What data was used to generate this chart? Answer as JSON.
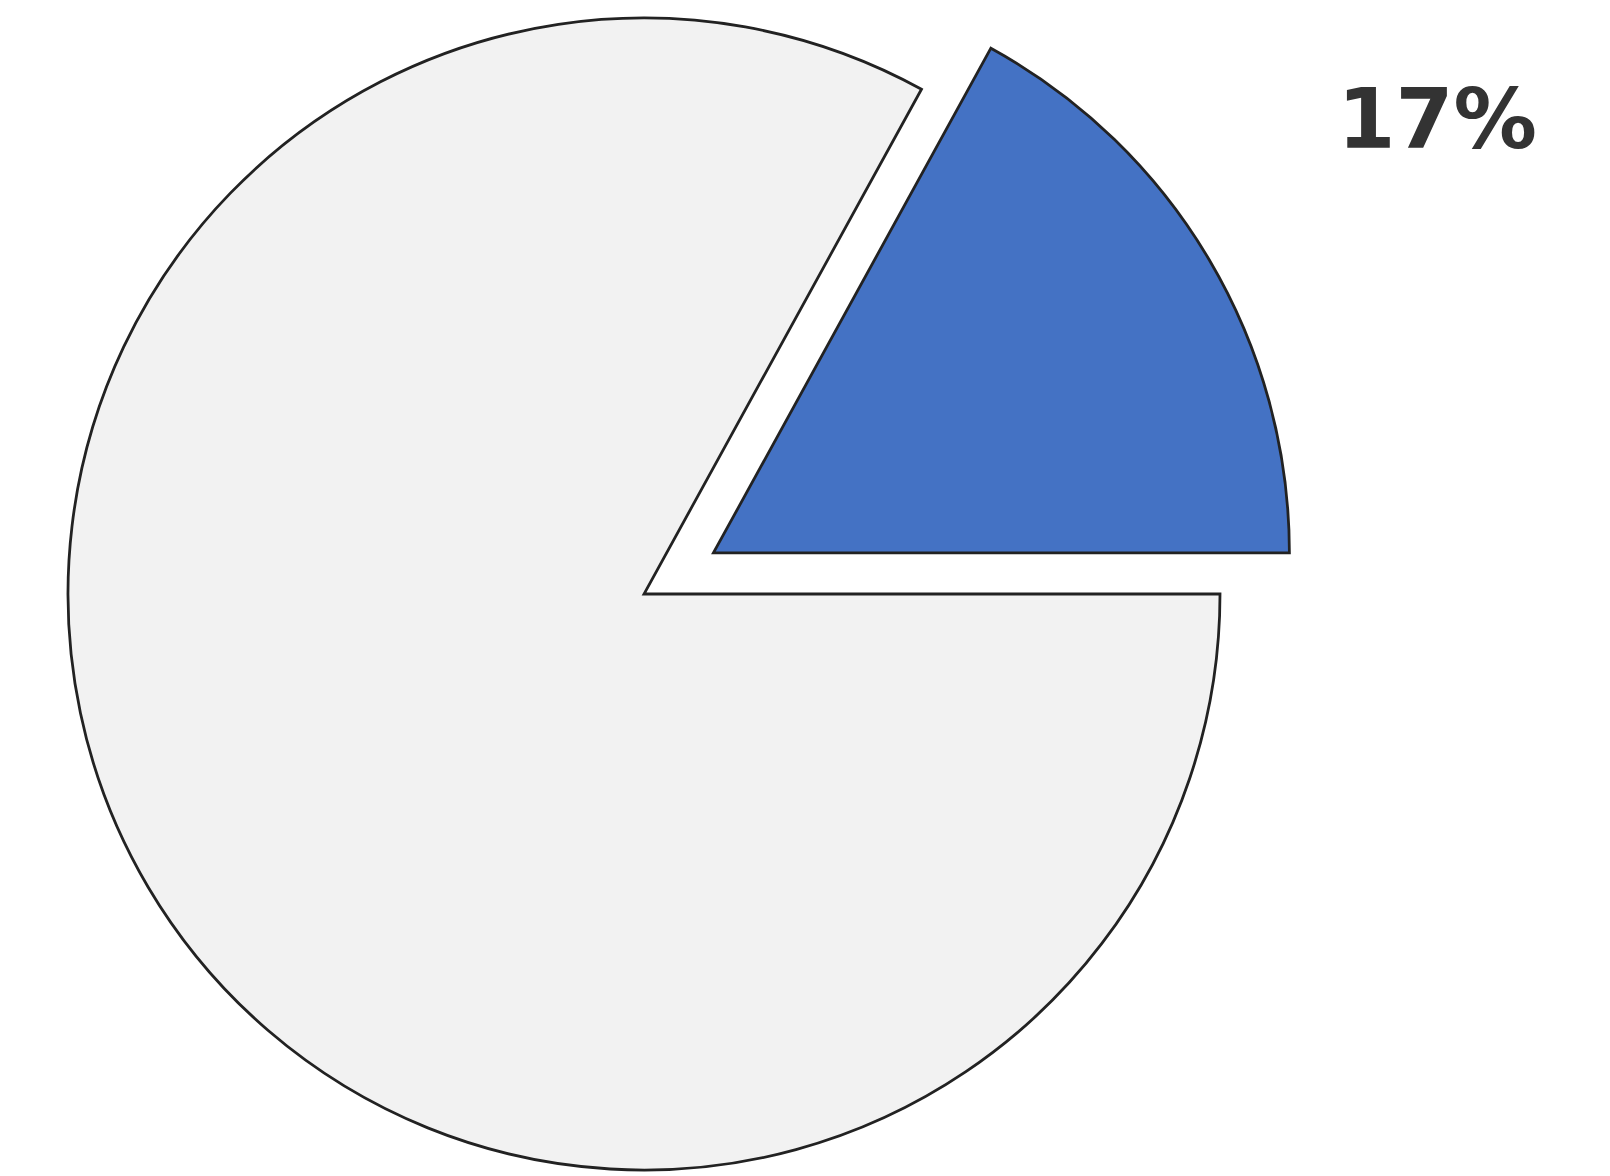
{
  "chart_data": {
    "type": "pie",
    "categories": [
      null,
      null
    ],
    "values": [
      17,
      83
    ],
    "colors": [
      "#4472c4",
      "#f2f2f2"
    ],
    "value_labels": [
      "17%",
      null
    ]
  }
}
